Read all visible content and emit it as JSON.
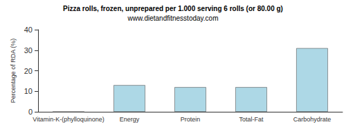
{
  "chart_data": {
    "type": "bar",
    "title": "Pizza rolls, frozen, unprepared per 1.000 serving 6 rolls (or 80.00 g)",
    "subtitle": "www.dietandfitnesstoday.com",
    "y_label": "Percentage of RDA (%)",
    "categories": [
      "Vitamin-K-(phylloquinone)",
      "Energy",
      "Protein",
      "Total-Fat",
      "Carbohydrate"
    ],
    "values": [
      0,
      13,
      12,
      12,
      31
    ],
    "color": "#add8e6",
    "ylim": [
      0,
      40
    ],
    "yticks": [
      0,
      10,
      20,
      30,
      40
    ],
    "grid": false
  }
}
